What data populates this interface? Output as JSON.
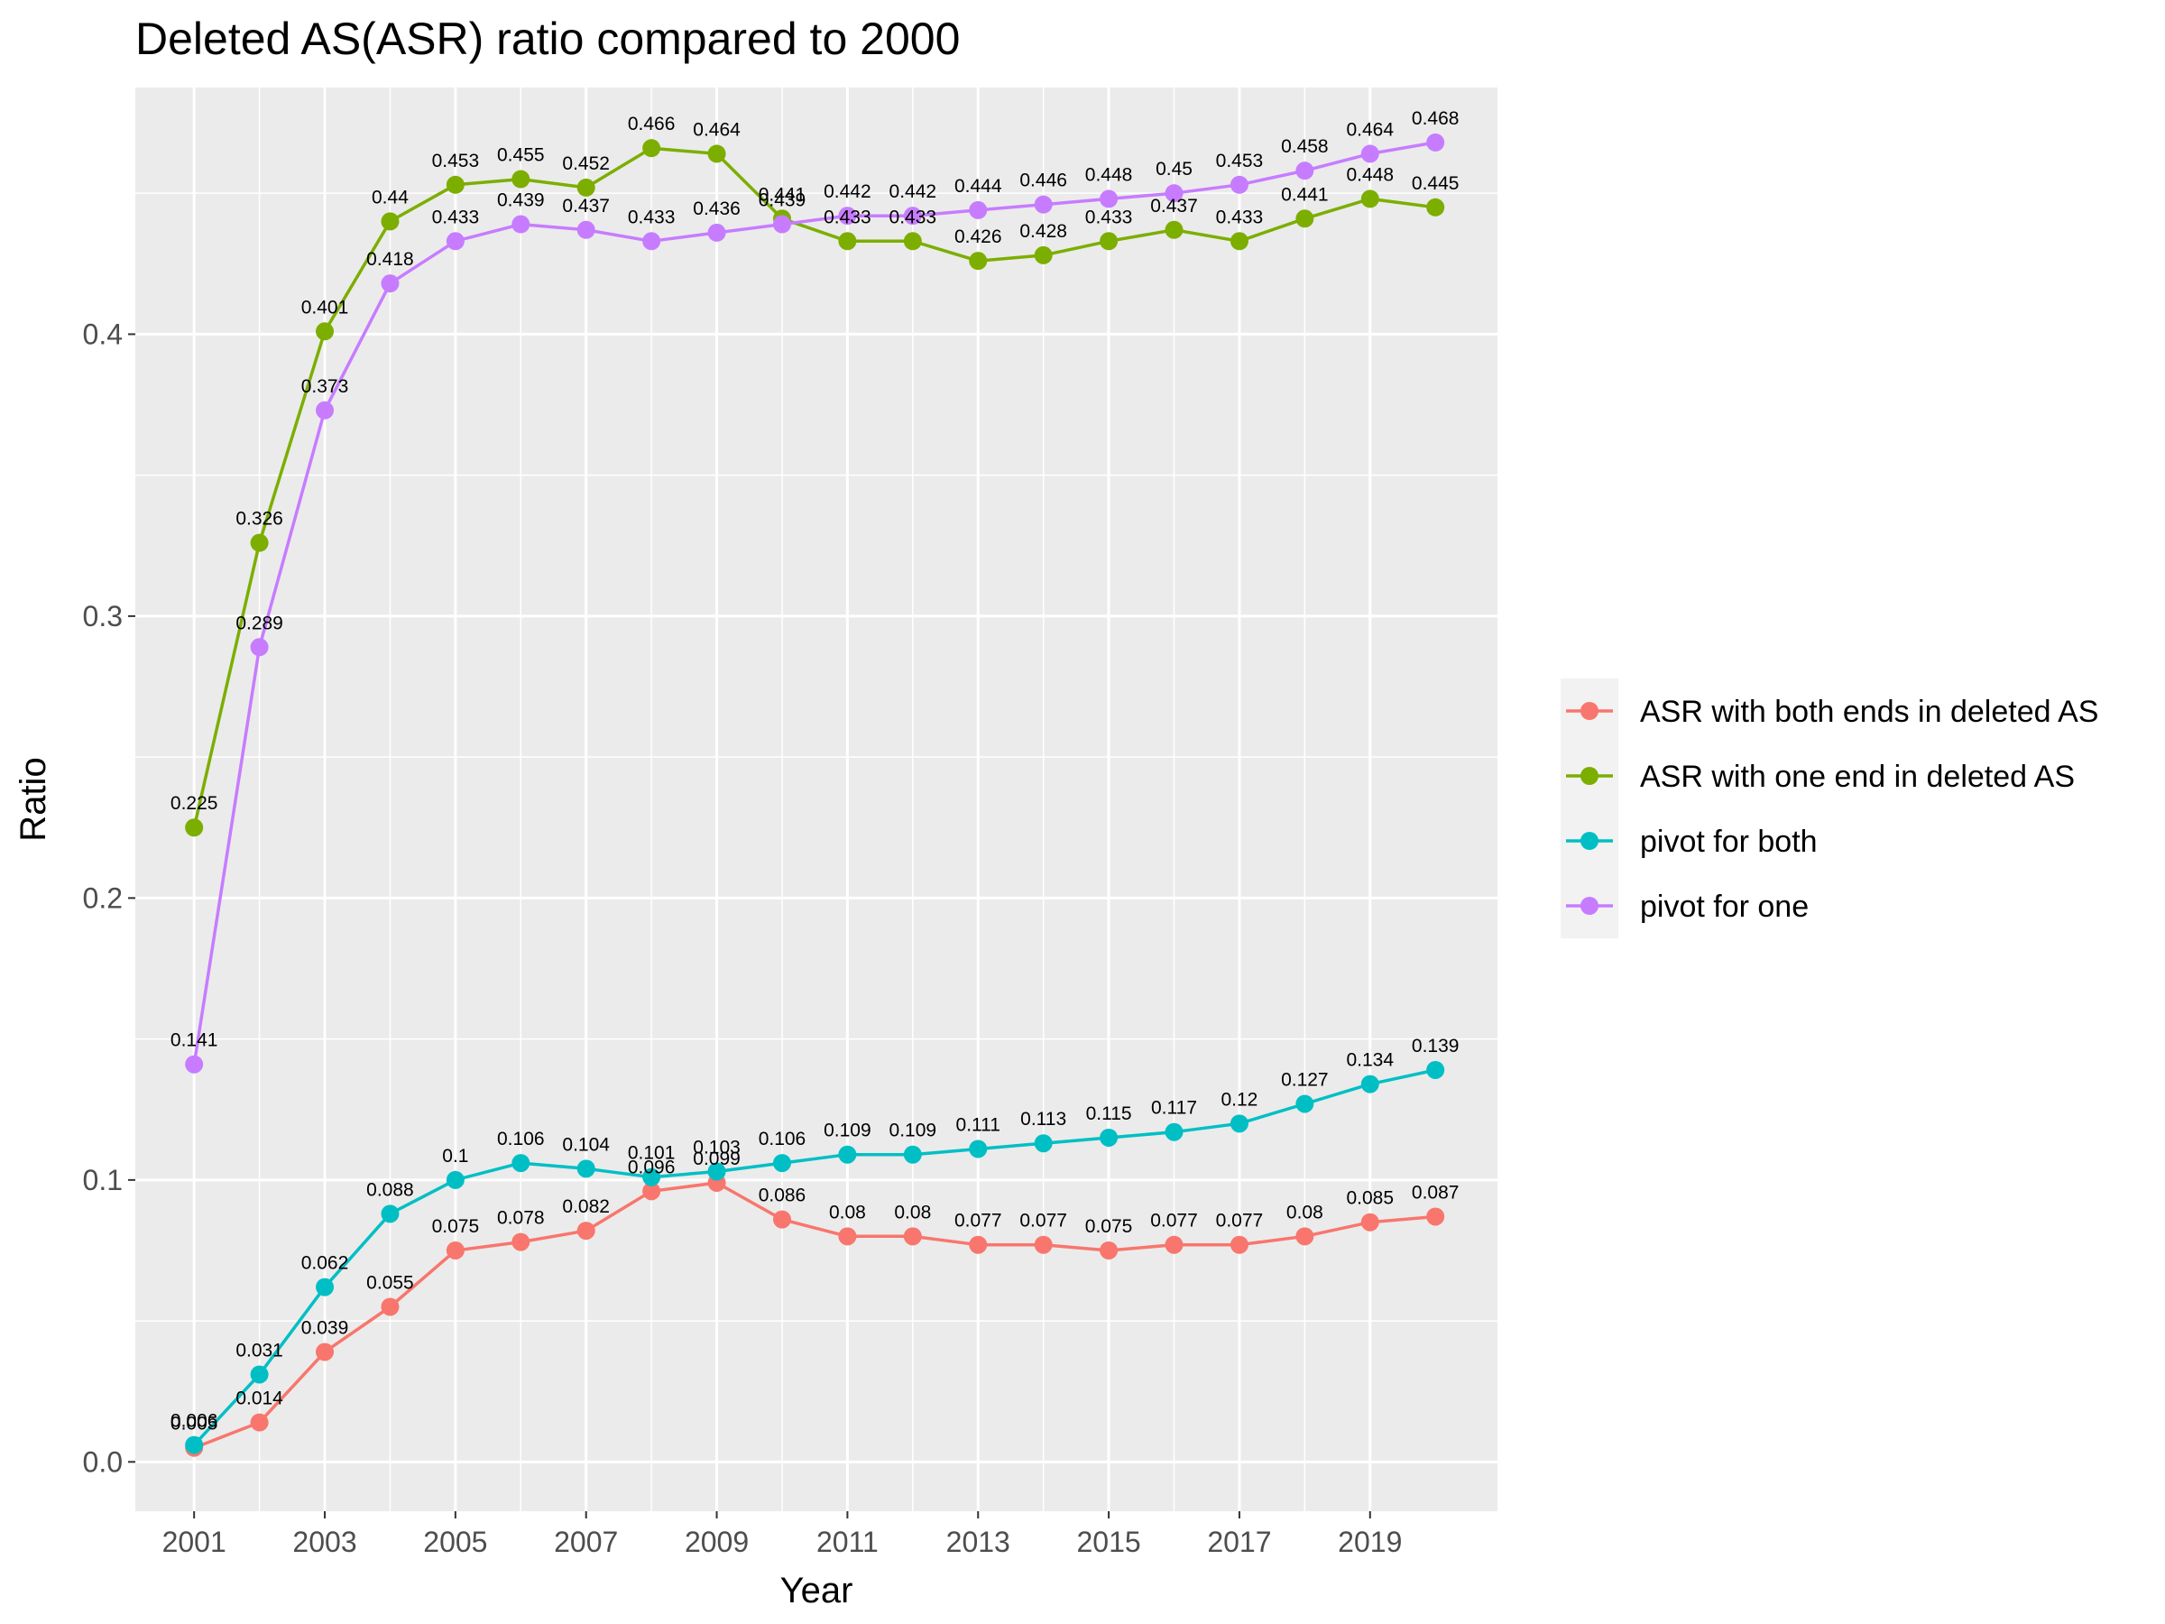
{
  "chart_data": {
    "type": "line",
    "title": "Deleted AS(ASR) ratio compared to 2000",
    "xlabel": "Year",
    "ylabel": "Ratio",
    "x": [
      2001,
      2002,
      2003,
      2004,
      2005,
      2006,
      2007,
      2008,
      2009,
      2010,
      2011,
      2012,
      2013,
      2014,
      2015,
      2016,
      2017,
      2018,
      2019,
      2020
    ],
    "x_ticks": [
      2001,
      2003,
      2005,
      2007,
      2009,
      2011,
      2013,
      2015,
      2017,
      2019
    ],
    "x_tick_labels": [
      "2001",
      "2003",
      "2005",
      "2007",
      "2009",
      "2011",
      "2013",
      "2015",
      "2017",
      "2019"
    ],
    "y_ticks": [
      0.0,
      0.1,
      0.2,
      0.3,
      0.4
    ],
    "y_tick_labels": [
      "0.0",
      "0.1",
      "0.2",
      "0.3",
      "0.4"
    ],
    "xlim": [
      2000.1,
      2020.95
    ],
    "ylim": [
      -0.0175,
      0.4875
    ],
    "grid": true,
    "legend_position": "right",
    "series": [
      {
        "name": "ASR with both ends in deleted AS",
        "color": "#F8766D",
        "values": [
          0.005,
          0.014,
          0.039,
          0.055,
          0.075,
          0.078,
          0.082,
          0.096,
          0.099,
          0.086,
          0.08,
          0.08,
          0.077,
          0.077,
          0.075,
          0.077,
          0.077,
          0.08,
          0.085,
          0.087
        ],
        "labels": [
          "0.005",
          "0.014",
          "0.039",
          "0.055",
          "0.075",
          "0.078",
          "0.082",
          "0.096",
          "0.099",
          "0.086",
          "0.08",
          "0.08",
          "0.077",
          "0.077",
          "0.075",
          "0.077",
          "0.077",
          "0.08",
          "0.085",
          "0.087"
        ]
      },
      {
        "name": "ASR with one end in deleted AS",
        "color": "#7CAE00",
        "values": [
          0.225,
          0.326,
          0.401,
          0.44,
          0.453,
          0.455,
          0.452,
          0.466,
          0.464,
          0.441,
          0.433,
          0.433,
          0.426,
          0.428,
          0.433,
          0.437,
          0.433,
          0.441,
          0.448,
          0.445
        ],
        "labels": [
          "0.225",
          "0.326",
          "0.401",
          "0.44",
          "0.453",
          "0.455",
          "0.452",
          "0.466",
          "0.464",
          "0.441",
          "0.433",
          "0.433",
          "0.426",
          "0.428",
          "0.433",
          "0.437",
          "0.433",
          "0.441",
          "0.448",
          "0.445"
        ]
      },
      {
        "name": "pivot for both",
        "color": "#00BFC4",
        "values": [
          0.006,
          0.031,
          0.062,
          0.088,
          0.1,
          0.106,
          0.104,
          0.101,
          0.103,
          0.106,
          0.109,
          0.109,
          0.111,
          0.113,
          0.115,
          0.117,
          0.12,
          0.127,
          0.134,
          0.139
        ],
        "labels": [
          "0.006",
          "0.031",
          "0.062",
          "0.088",
          "0.1",
          "0.106",
          "0.104",
          "0.101",
          "0.103",
          "0.106",
          "0.109",
          "0.109",
          "0.111",
          "0.113",
          "0.115",
          "0.117",
          "0.12",
          "0.127",
          "0.134",
          "0.139"
        ]
      },
      {
        "name": "pivot for one",
        "color": "#C77CFF",
        "values": [
          0.141,
          0.289,
          0.373,
          0.418,
          0.433,
          0.439,
          0.437,
          0.433,
          0.436,
          0.439,
          0.442,
          0.442,
          0.444,
          0.446,
          0.448,
          0.45,
          0.453,
          0.458,
          0.464,
          0.468
        ],
        "labels": [
          "0.141",
          "0.289",
          "0.373",
          "0.418",
          "0.433",
          "0.439",
          "0.437",
          "0.433",
          "0.436",
          "0.439",
          "0.442",
          "0.442",
          "0.444",
          "0.446",
          "0.448",
          "0.45",
          "0.453",
          "0.458",
          "0.464",
          "0.468"
        ]
      }
    ]
  },
  "style": {
    "panel_background": "#EBEBEB",
    "grid_color": "#FFFFFF",
    "tick_color": "#333333",
    "tick_label_color": "#4D4D4D",
    "legend_key_background": "#F2F2F2"
  }
}
